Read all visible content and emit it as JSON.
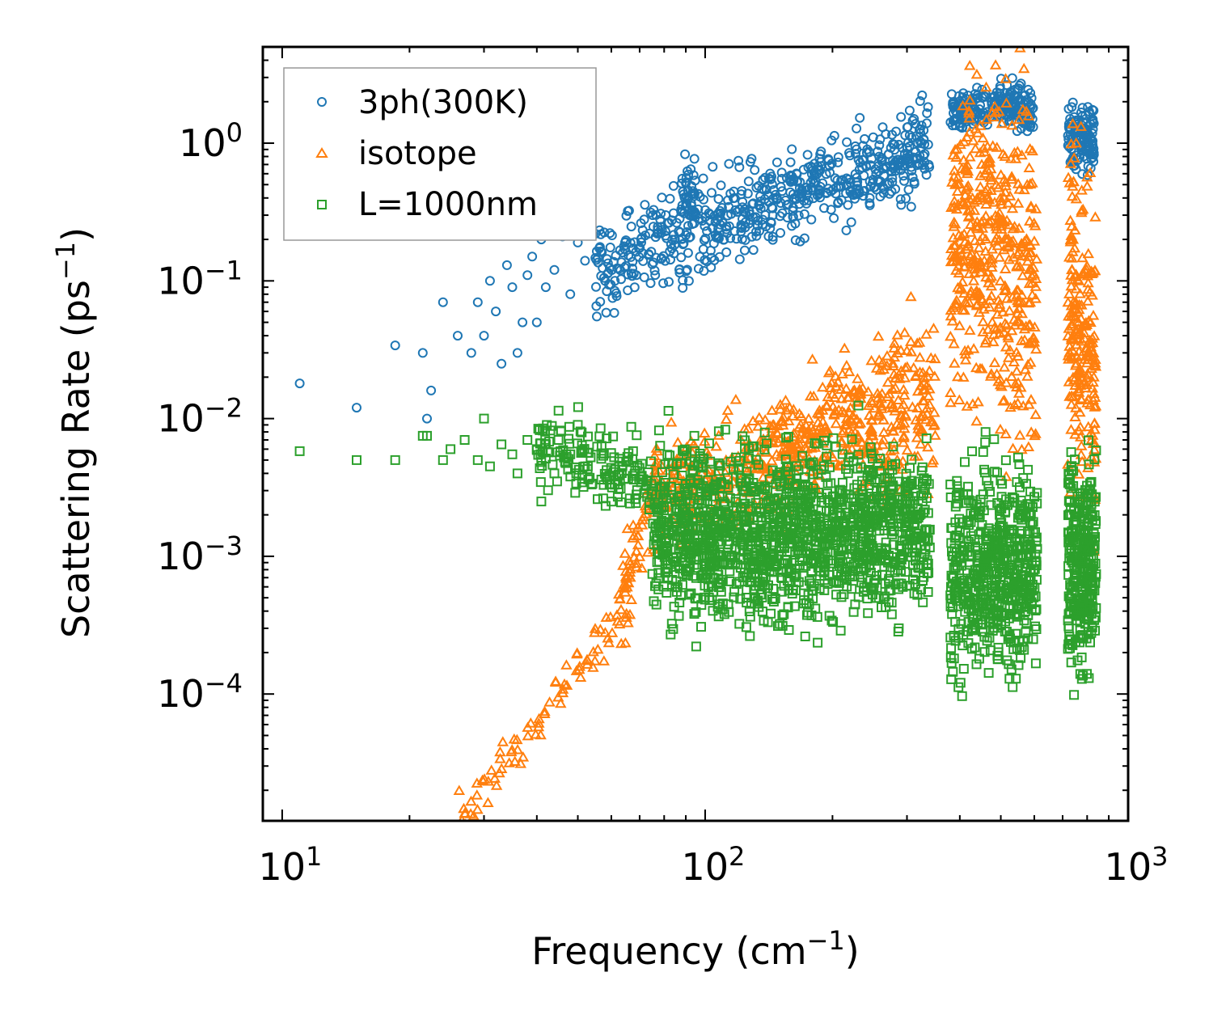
{
  "chart_data": {
    "type": "scatter",
    "xscale": "log",
    "yscale": "log",
    "xlim": [
      9,
      1000
    ],
    "ylim": [
      1.2e-05,
      5
    ],
    "xlabel": "Frequency (cm",
    "xlabel_sup": "−1",
    "xlabel_tail": ")",
    "ylabel": "Scattering Rate (ps",
    "ylabel_sup": "−1",
    "ylabel_tail": ")",
    "x_ticks": [
      {
        "value": 10,
        "base": "10",
        "exp": "1"
      },
      {
        "value": 100,
        "base": "10",
        "exp": "2"
      },
      {
        "value": 1000,
        "base": "10",
        "exp": "3"
      }
    ],
    "y_ticks": [
      {
        "value": 1,
        "base": "10",
        "exp": "0"
      },
      {
        "value": 0.1,
        "base": "10",
        "exp": "−1"
      },
      {
        "value": 0.01,
        "base": "10",
        "exp": "−2"
      },
      {
        "value": 0.001,
        "base": "10",
        "exp": "−3"
      },
      {
        "value": 0.0001,
        "base": "10",
        "exp": "−4"
      }
    ],
    "legend": {
      "position": "top-left"
    },
    "series": [
      {
        "name": "3ph(300K)",
        "marker": "circle",
        "color": "#1f77b4",
        "segments": [
          {
            "x": [
              11,
              15,
              18.5,
              21.5,
              22.5,
              22,
              24,
              26,
              28,
              29,
              30,
              31,
              32,
              33,
              34,
              35,
              36,
              37,
              38,
              39,
              40,
              41,
              42,
              44,
              46,
              48,
              50,
              52,
              55,
              58
            ],
            "y": [
              0.018,
              0.012,
              0.034,
              0.03,
              0.016,
              0.01,
              0.07,
              0.04,
              0.03,
              0.07,
              0.04,
              0.1,
              0.06,
              0.025,
              0.13,
              0.09,
              0.03,
              0.05,
              0.11,
              0.15,
              0.05,
              0.2,
              0.09,
              0.12,
              0.21,
              0.08,
              0.19,
              0.14,
              0.22,
              0.1
            ],
            "jitter": 0.0
          },
          {
            "x": [
              55,
              340
            ],
            "y": [
              0.12,
              1.0
            ],
            "n": 650,
            "jitter": 0.16
          },
          {
            "x": [
              88,
              95
            ],
            "y": [
              0.45,
              0.45
            ],
            "n": 30,
            "jitter": 0.12
          },
          {
            "x": [
              380,
              500
            ],
            "y": [
              1.6,
              2.0
            ],
            "n": 120,
            "jitter": 0.06
          },
          {
            "x": [
              500,
              600
            ],
            "y": [
              2.1,
              1.7
            ],
            "n": 100,
            "jitter": 0.08
          },
          {
            "x": [
              720,
              830
            ],
            "y": [
              1.1,
              1.1
            ],
            "n": 130,
            "jitter": 0.13
          }
        ]
      },
      {
        "name": "isotope",
        "marker": "triangle",
        "color": "#ff7f0e",
        "segments": [
          {
            "x": [
              26,
              62
            ],
            "y": [
              1.2e-05,
              0.00035
            ],
            "n": 80,
            "jitter": 0.09
          },
          {
            "x": [
              62,
              75
            ],
            "y": [
              0.00035,
              0.0025
            ],
            "n": 60,
            "jitter": 0.14
          },
          {
            "x": [
              75,
              140
            ],
            "y": [
              0.003,
              0.005
            ],
            "n": 200,
            "jitter": 0.18
          },
          {
            "x": [
              140,
              230
            ],
            "y": [
              0.0045,
              0.012
            ],
            "n": 220,
            "jitter": 0.2
          },
          {
            "x": [
              230,
              350
            ],
            "y": [
              0.008,
              0.015
            ],
            "n": 200,
            "jitter": 0.28
          },
          {
            "x": [
              380,
              470
            ],
            "y": [
              0.15,
              0.3
            ],
            "n": 220,
            "jitter": 0.55
          },
          {
            "x": [
              470,
              610
            ],
            "y": [
              0.2,
              0.08
            ],
            "n": 260,
            "jitter": 0.6
          },
          {
            "x": [
              720,
              840
            ],
            "y": [
              0.08,
              0.02
            ],
            "n": 220,
            "jitter": 0.6
          }
        ]
      },
      {
        "name": "L=1000nm",
        "marker": "square",
        "color": "#2ca02c",
        "segments": [
          {
            "x": [
              11,
              15,
              18.5,
              21.5,
              22,
              24,
              25,
              27,
              29,
              30,
              31,
              33,
              35,
              36,
              38,
              40,
              41,
              42,
              44,
              45,
              48,
              50,
              52
            ],
            "y": [
              0.0058,
              0.005,
              0.005,
              0.0075,
              0.0075,
              0.005,
              0.006,
              0.007,
              0.005,
              0.01,
              0.0045,
              0.0065,
              0.0055,
              0.004,
              0.007,
              0.006,
              0.0025,
              0.0065,
              0.004,
              0.007,
              0.0055,
              0.009,
              0.0045
            ],
            "jitter": 0.0
          },
          {
            "x": [
              40,
              75
            ],
            "y": [
              0.006,
              0.0035
            ],
            "n": 160,
            "jitter": 0.13
          },
          {
            "x": [
              75,
              340
            ],
            "y": [
              0.0015,
              0.0015
            ],
            "n": 1500,
            "jitter": 0.3
          },
          {
            "x": [
              380,
              610
            ],
            "y": [
              0.0008,
              0.0008
            ],
            "n": 600,
            "jitter": 0.35
          },
          {
            "x": [
              720,
              840
            ],
            "y": [
              0.0009,
              0.0009
            ],
            "n": 300,
            "jitter": 0.38
          }
        ]
      }
    ]
  }
}
